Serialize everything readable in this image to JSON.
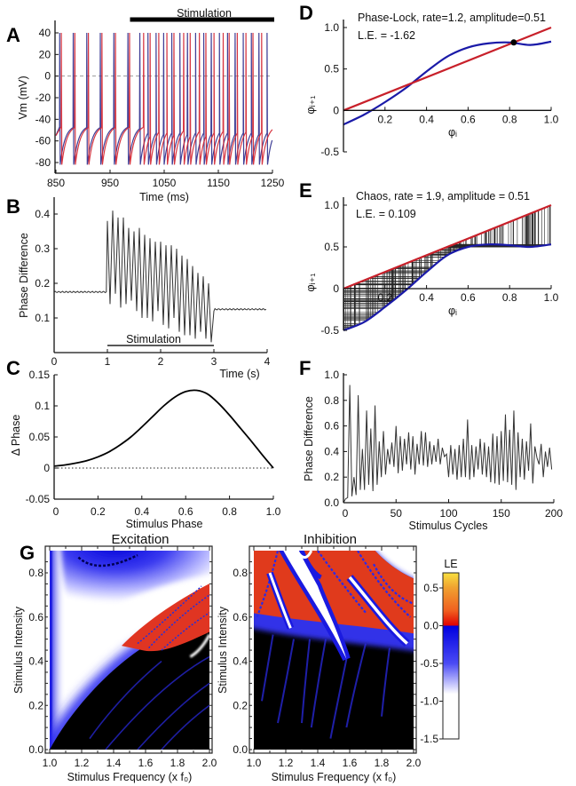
{
  "panel_labels": {
    "A": "A",
    "B": "B",
    "C": "C",
    "D": "D",
    "E": "E",
    "F": "F",
    "G": "G"
  },
  "chart_data": [
    {
      "id": "A",
      "type": "line",
      "xlabel": "Time (ms)",
      "ylabel": "Vm (mV)",
      "xlim": [
        850,
        1250
      ],
      "ylim": [
        -80,
        40
      ],
      "xticks": [
        "850",
        "950",
        "1050",
        "1150",
        "1250"
      ],
      "yticks": [
        "40",
        "20",
        "0",
        "-20",
        "-40",
        "-60",
        "-80"
      ],
      "annotation": "Stimulation",
      "stimulation_interval": [
        1000,
        1250
      ],
      "reference_line": 0,
      "spike_peak": 40,
      "trough": -82,
      "series": [
        {
          "color": "#2b2b8c",
          "spike_times": [
            857,
            882,
            907,
            932,
            957,
            983,
            1005,
            1020,
            1035,
            1049,
            1064,
            1079,
            1093,
            1108,
            1123,
            1137,
            1152,
            1167,
            1181,
            1196,
            1211,
            1225,
            1240
          ]
        },
        {
          "color": "#d3202c",
          "spike_times": [
            860,
            885,
            910,
            935,
            960,
            986,
            1012,
            1024,
            1040,
            1055,
            1068,
            1086,
            1098,
            1115,
            1127,
            1142,
            1159,
            1170,
            1185,
            1201,
            1214,
            1230
          ]
        }
      ]
    },
    {
      "id": "B",
      "type": "line",
      "xlabel": "Time (s)",
      "ylabel": "Phase Difference",
      "xlim": [
        0,
        4
      ],
      "ylim": [
        0,
        0.45
      ],
      "xticks": [
        "0",
        "1",
        "2",
        "3",
        "4"
      ],
      "yticks": [
        "0.4",
        "0.3",
        "0.2",
        "0.1"
      ],
      "annotation": "Stimulation",
      "stimulation_interval": [
        1,
        3
      ],
      "pre_value": 0.175,
      "post_value": 0.125,
      "stim_values": [
        0.38,
        0.14,
        0.41,
        0.17,
        0.39,
        0.13,
        0.39,
        0.14,
        0.36,
        0.15,
        0.35,
        0.12,
        0.36,
        0.1,
        0.34,
        0.1,
        0.33,
        0.09,
        0.32,
        0.12,
        0.32,
        0.08,
        0.31,
        0.07,
        0.31,
        0.1,
        0.3,
        0.06,
        0.28,
        0.05,
        0.27,
        0.05,
        0.25,
        0.04,
        0.23,
        0.06,
        0.22,
        0.04,
        0.2,
        0.03,
        0.12
      ],
      "color": "#333333"
    },
    {
      "id": "C",
      "type": "line",
      "xlabel": "Stimulus Phase",
      "ylabel": "Δ Phase",
      "xlim": [
        0,
        1
      ],
      "ylim": [
        -0.05,
        0.15
      ],
      "xticks": [
        "0",
        "0.2",
        "0.4",
        "0.6",
        "0.8",
        "1.0"
      ],
      "yticks": [
        "0.15",
        "0.1",
        "0.05",
        "0",
        "-0.05"
      ],
      "reference_line": 0,
      "x": [
        0,
        0.05,
        0.1,
        0.15,
        0.2,
        0.25,
        0.3,
        0.35,
        0.4,
        0.45,
        0.5,
        0.55,
        0.6,
        0.65,
        0.7,
        0.75,
        0.8,
        0.85,
        0.9,
        0.95,
        1.0
      ],
      "y": [
        0.003,
        0.005,
        0.008,
        0.012,
        0.018,
        0.026,
        0.037,
        0.05,
        0.066,
        0.083,
        0.1,
        0.114,
        0.123,
        0.125,
        0.119,
        0.104,
        0.085,
        0.064,
        0.043,
        0.021,
        0
      ]
    },
    {
      "id": "D",
      "type": "line",
      "title": "Phase-Lock, rate=1.2, amplitude=0.51",
      "subtitle": "L.E. = -1.62",
      "xlabel": "φᵢ",
      "ylabel": "φᵢ₊₁",
      "xlim": [
        0,
        1
      ],
      "ylim": [
        -0.5,
        1
      ],
      "xticks": [
        "0.2",
        "0.4",
        "0.6",
        "0.8",
        "1.0"
      ],
      "yticks": [
        "1.0",
        "0.5",
        "0",
        "-0.5"
      ],
      "map": {
        "color": "#1a1aa8",
        "x": [
          0,
          0.1,
          0.2,
          0.3,
          0.4,
          0.5,
          0.6,
          0.7,
          0.8,
          0.9,
          1.0
        ],
        "y": [
          -0.17,
          -0.05,
          0.1,
          0.27,
          0.47,
          0.65,
          0.76,
          0.81,
          0.82,
          0.79,
          0.83
        ]
      },
      "identity": {
        "color": "#c8202a",
        "x": [
          0,
          1
        ],
        "y": [
          0,
          1
        ]
      },
      "fixed_point": [
        0.82,
        0.82
      ]
    },
    {
      "id": "E",
      "type": "line",
      "title": "Chaos, rate = 1.9, amplitude = 0.51",
      "subtitle": "L.E. = 0.109",
      "xlabel": "φᵢ",
      "ylabel": "φᵢ₊₁",
      "xlim": [
        0,
        1
      ],
      "ylim": [
        -0.5,
        1
      ],
      "xticks": [
        "0.2",
        "0.4",
        "0.6",
        "0.8",
        "1.0"
      ],
      "yticks": [
        "1.0",
        "0.5",
        "0",
        "-0.5"
      ],
      "map": {
        "color": "#1a1aa8",
        "x": [
          0,
          0.1,
          0.2,
          0.3,
          0.4,
          0.5,
          0.6,
          0.7,
          0.8,
          0.9,
          1.0
        ],
        "y": [
          -0.5,
          -0.4,
          -0.22,
          -0.02,
          0.2,
          0.4,
          0.5,
          0.53,
          0.52,
          0.5,
          0.53
        ]
      },
      "identity": {
        "color": "#c8202a",
        "x": [
          0,
          1
        ],
        "y": [
          0,
          1
        ]
      },
      "cobweb": true
    },
    {
      "id": "F",
      "type": "line",
      "xlabel": "Stimulus Cycles",
      "ylabel": "Phase Difference",
      "xlim": [
        0,
        200
      ],
      "ylim": [
        0,
        1
      ],
      "xticks": [
        "0",
        "50",
        "100",
        "150",
        "200"
      ],
      "yticks": [
        "1.0",
        "0.8",
        "0.6",
        "0.4",
        "0.2",
        "0.0"
      ],
      "x_step": 2,
      "y": [
        0.0,
        0.03,
        0.04,
        0.92,
        0.05,
        0.2,
        0.06,
        0.84,
        0.1,
        0.42,
        0.1,
        0.72,
        0.14,
        0.58,
        0.09,
        0.76,
        0.14,
        0.48,
        0.2,
        0.56,
        0.22,
        0.42,
        0.3,
        0.47,
        0.28,
        0.6,
        0.23,
        0.52,
        0.25,
        0.5,
        0.3,
        0.55,
        0.26,
        0.52,
        0.22,
        0.46,
        0.3,
        0.56,
        0.29,
        0.55,
        0.28,
        0.48,
        0.3,
        0.45,
        0.32,
        0.5,
        0.3,
        0.43,
        0.36,
        0.38,
        0.2,
        0.45,
        0.22,
        0.42,
        0.18,
        0.45,
        0.2,
        0.5,
        0.2,
        0.65,
        0.18,
        0.45,
        0.2,
        0.44,
        0.26,
        0.5,
        0.22,
        0.47,
        0.2,
        0.44,
        0.16,
        0.54,
        0.15,
        0.52,
        0.14,
        0.56,
        0.17,
        0.69,
        0.16,
        0.57,
        0.14,
        0.72,
        0.1,
        0.55,
        0.2,
        0.5,
        0.18,
        0.48,
        0.25,
        0.62,
        0.15,
        0.44,
        0.35,
        0.3,
        0.46,
        0.2,
        0.4,
        0.28,
        0.43,
        0.26
      ],
      "color": "#333333"
    },
    {
      "id": "G-excitation",
      "type": "heatmap",
      "title": "Excitation",
      "xlabel": "Stimulus Frequency (x f₀)",
      "ylabel": "Stimulus Intensity",
      "xlim": [
        1.0,
        2.0
      ],
      "ylim": [
        0.0,
        0.9
      ],
      "xticks": [
        "1.0",
        "1.2",
        "1.4",
        "1.6",
        "1.8",
        "2.0"
      ],
      "yticks": [
        "0.0",
        "0.2",
        "0.4",
        "0.6",
        "0.8"
      ]
    },
    {
      "id": "G-inhibition",
      "type": "heatmap",
      "title": "Inhibition",
      "xlabel": "Stimulus Frequency (x f₀)",
      "ylabel": "Stimulus Intensity",
      "xlim": [
        1.0,
        2.0
      ],
      "ylim": [
        0.0,
        0.9
      ],
      "xticks": [
        "1.0",
        "1.2",
        "1.4",
        "1.6",
        "1.8",
        "2.0"
      ],
      "yticks": [
        "0.0",
        "0.2",
        "0.4",
        "0.6",
        "0.8"
      ]
    },
    {
      "id": "G-colorbar",
      "type": "colorbar",
      "label": "LE",
      "range": [
        -1.5,
        0.7
      ],
      "ticks": [
        "0.5",
        "0.0",
        "-0.5",
        "-1.0",
        "-1.5"
      ],
      "colors": {
        "positive_high": "#f8e040",
        "positive_mid": "#f06020",
        "zero_positive": "#e00000",
        "zero_negative": "#0000e0",
        "negative_mid": "#4a4af5",
        "negative_low": "#ffffff"
      }
    }
  ]
}
